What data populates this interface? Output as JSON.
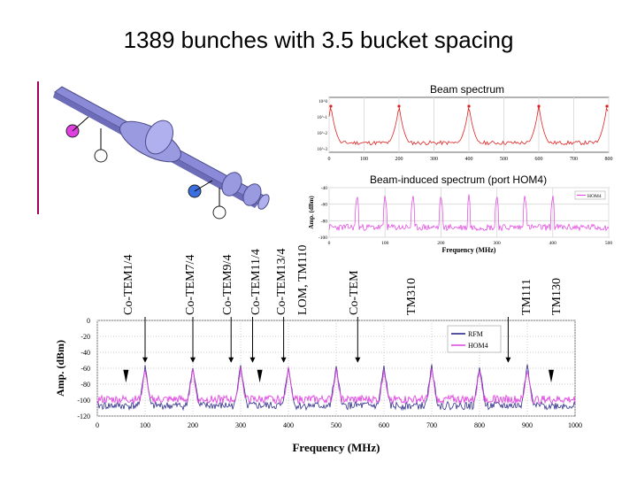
{
  "slide": {
    "title": "1389 bunches with 3.5 bucket spacing",
    "beam_caption": "Beam spectrum",
    "hom_caption": "Beam-induced spectrum (port HOM4)"
  },
  "mode_labels": [
    "Co-TEM1/4",
    "Co-TEM7/4",
    "Co-TEM9/4",
    "Co-TEM11/4",
    "Co-TEM13/4",
    "LOM, TM110",
    "Co-TEM",
    "TM310",
    "TM111",
    "TM130"
  ],
  "colors": {
    "rfm": "#1a1a80",
    "hom4": "#e040e0",
    "beam": "#e02020",
    "accent": "#a0005a",
    "port_magenta": "#e040e0",
    "port_blue": "#3b6fe0",
    "coupler": "#8a8ad8"
  },
  "chart_data": [
    {
      "type": "line",
      "title": "Beam spectrum",
      "xlabel": "",
      "ylabel": "",
      "xlim": [
        0,
        800
      ],
      "x_ticks": [
        "0",
        "100",
        "200",
        "300",
        "400",
        "500",
        "600",
        "700",
        "800"
      ],
      "y_ticks": [
        "10^0",
        "10^-1",
        "10^-2",
        "10^-3"
      ],
      "log_y": true,
      "series": [
        {
          "color": "#e02020",
          "peaks_x": [
            5,
            200,
            400,
            600,
            795
          ]
        }
      ]
    },
    {
      "type": "line",
      "title": "Beam-induced spectrum (port HOM4)",
      "xlabel": "Frequency (MHz)",
      "ylabel": "Amp. (dBm)",
      "xlim": [
        0,
        500
      ],
      "ylim": [
        -100,
        -40
      ],
      "x_ticks": [
        "0",
        "100",
        "200",
        "300",
        "400",
        "500"
      ],
      "y_ticks": [
        "-40",
        "-60",
        "-80",
        "-100"
      ],
      "legend": [
        "HOM4"
      ],
      "legend_placement": "top-right",
      "series": [
        {
          "name": "HOM4",
          "color": "#e040e0",
          "peaks_x": [
            50,
            100,
            150,
            200,
            250,
            300,
            350,
            400
          ]
        }
      ]
    },
    {
      "type": "line",
      "title": "",
      "xlabel": "Frequency (MHz)",
      "ylabel": "Amp. (dBm)",
      "xlim": [
        0,
        1000
      ],
      "ylim": [
        -120,
        0
      ],
      "x_ticks": [
        "0",
        "100",
        "200",
        "300",
        "400",
        "500",
        "600",
        "700",
        "800",
        "900",
        "1000"
      ],
      "y_ticks": [
        "0",
        "-20",
        "-40",
        "-60",
        "-80",
        "-100",
        "-120"
      ],
      "legend": [
        "RFM",
        "HOM4"
      ],
      "legend_placement": "top-right",
      "series": [
        {
          "name": "RFM",
          "color": "#1a1a80",
          "peaks_x": [
            100,
            200,
            300,
            400,
            500,
            600,
            700,
            800,
            900
          ]
        },
        {
          "name": "HOM4",
          "color": "#e040e0",
          "peaks_x": [
            100,
            200,
            300,
            400,
            500,
            600,
            700,
            800,
            900
          ]
        }
      ],
      "arrow_markers_x": [
        100,
        200,
        280,
        325,
        390,
        545,
        860
      ],
      "triangle_markers_x": [
        60,
        340,
        950
      ]
    }
  ]
}
